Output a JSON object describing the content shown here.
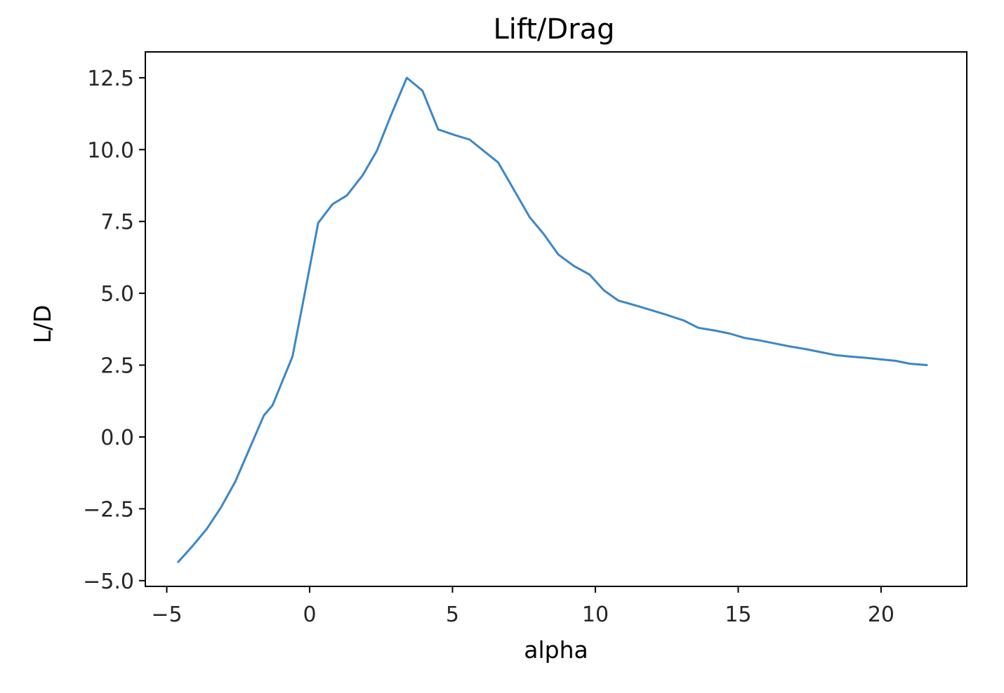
{
  "chart_data": {
    "type": "line",
    "title": "Lift/Drag",
    "xlabel": "alpha",
    "ylabel": "L/D",
    "xlim": [
      -5.75,
      23.0
    ],
    "ylim": [
      -5.2,
      13.4
    ],
    "xticks": [
      -5,
      0,
      5,
      10,
      15,
      20
    ],
    "yticks": [
      -5.0,
      -2.5,
      0.0,
      2.5,
      5.0,
      7.5,
      10.0,
      12.5
    ],
    "xtick_labels": [
      "−5",
      "0",
      "5",
      "10",
      "15",
      "20"
    ],
    "ytick_labels": [
      "−5.0",
      "−2.5",
      "0.0",
      "2.5",
      "5.0",
      "7.5",
      "10.0",
      "12.5"
    ],
    "grid": false,
    "series": [
      {
        "color": "#3a87c8",
        "x": [
          -4.6,
          -4.1,
          -3.6,
          -3.1,
          -2.6,
          -2.1,
          -1.6,
          -1.3,
          -0.6,
          -0.2,
          0.3,
          0.8,
          1.3,
          1.85,
          2.35,
          2.85,
          3.4,
          3.95,
          4.5,
          5.1,
          5.6,
          6.1,
          6.6,
          7.15,
          7.7,
          8.2,
          8.7,
          9.25,
          9.8,
          10.3,
          10.8,
          11.5,
          12.0,
          12.5,
          13.1,
          13.6,
          14.2,
          14.7,
          15.2,
          15.8,
          16.3,
          16.8,
          17.4,
          17.9,
          18.4,
          18.9,
          19.5,
          20.0,
          20.5,
          21.0,
          21.6
        ],
        "y": [
          -4.35,
          -3.8,
          -3.2,
          -2.45,
          -1.55,
          -0.4,
          0.75,
          1.1,
          2.8,
          4.85,
          7.45,
          8.1,
          8.4,
          9.1,
          9.95,
          11.2,
          12.5,
          12.05,
          10.7,
          10.5,
          10.35,
          9.95,
          9.55,
          8.6,
          7.65,
          7.05,
          6.35,
          5.95,
          5.65,
          5.1,
          4.75,
          4.55,
          4.4,
          4.25,
          4.05,
          3.8,
          3.7,
          3.6,
          3.45,
          3.35,
          3.25,
          3.15,
          3.05,
          2.95,
          2.85,
          2.8,
          2.75,
          2.7,
          2.65,
          2.55,
          2.5
        ]
      }
    ]
  }
}
